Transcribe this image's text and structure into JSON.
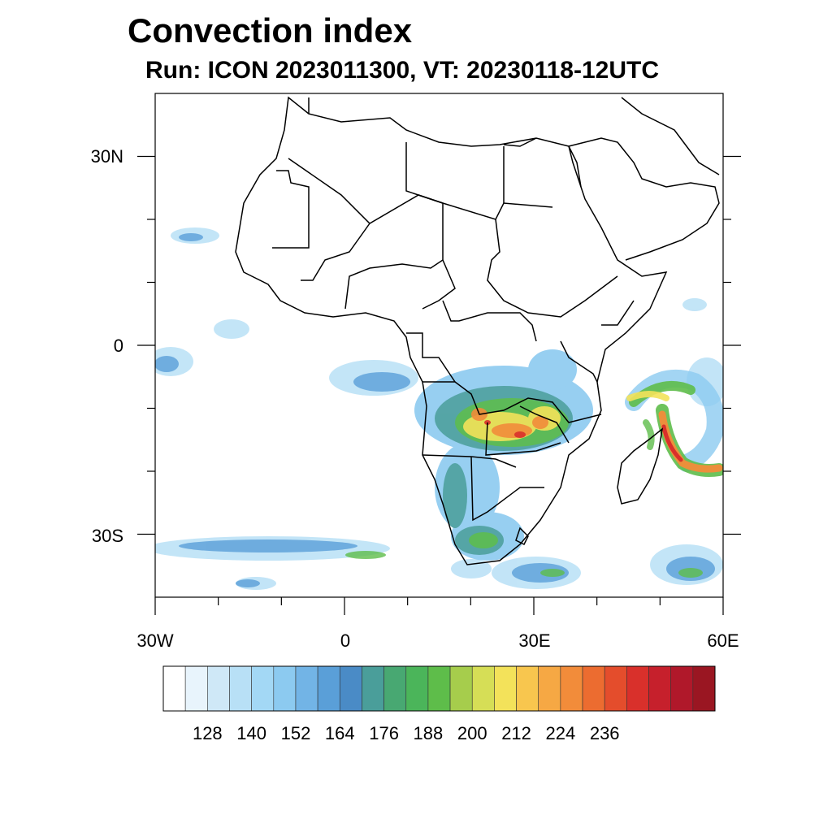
{
  "title": "Convection index",
  "subtitle": "Run: ICON 2023011300,  VT: 20230118-12UTC",
  "map": {
    "region": "Africa",
    "lon_range": [
      -30,
      60
    ],
    "lat_range": [
      -40,
      40
    ],
    "lat_ticks": [
      {
        "value": 30,
        "label": "30N"
      },
      {
        "value": 0,
        "label": "0"
      },
      {
        "value": -30,
        "label": "30S"
      }
    ],
    "lon_ticks": [
      {
        "value": -30,
        "label": "30W"
      },
      {
        "value": 0,
        "label": "0"
      },
      {
        "value": 30,
        "label": "30E"
      },
      {
        "value": 60,
        "label": "60E"
      }
    ],
    "minor_lon_ticks": [
      -20,
      -10,
      10,
      20,
      40,
      50
    ],
    "minor_lat_ticks": [
      20,
      10,
      -10,
      -20
    ]
  },
  "colorbar": {
    "colors": [
      "#ffffff",
      "#e8f4fc",
      "#cfe8f7",
      "#b8e0f6",
      "#a3d8f5",
      "#8ccaf0",
      "#72b4e6",
      "#5a9fd8",
      "#4a8bc6",
      "#4a9e9a",
      "#48a872",
      "#4bb55a",
      "#5ebd4a",
      "#a6cd4c",
      "#d6de56",
      "#f3e25a",
      "#f8c64e",
      "#f6a844",
      "#f28c3a",
      "#ec6c30",
      "#e44d2c",
      "#d9302b",
      "#c6202c",
      "#b0182a",
      "#9a1622"
    ],
    "tick_labels": [
      "128",
      "140",
      "152",
      "164",
      "176",
      "188",
      "200",
      "212",
      "224",
      "236"
    ]
  }
}
